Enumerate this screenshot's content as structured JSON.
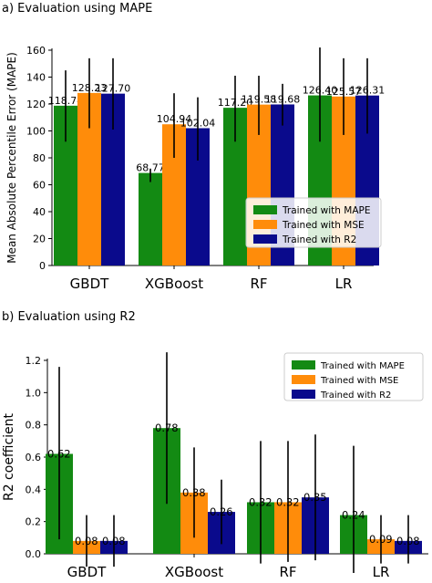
{
  "panels": {
    "a_title": "a) Evaluation using MAPE",
    "b_title": "b) Evaluation using R2"
  },
  "colors": {
    "Trained with MAPE": "#138a13",
    "Trained with MSE": "#ff8c0a",
    "Trained with R2": "#0a0a8c"
  },
  "chart_data": [
    {
      "type": "bar",
      "title": "a) Evaluation using MAPE",
      "xlabel": "",
      "ylabel": "Mean Absolute Percentile Error (MAPE)",
      "ylim": [
        0,
        160
      ],
      "yticks": [
        "0",
        "20",
        "40",
        "60",
        "80",
        "100",
        "120",
        "140",
        "160"
      ],
      "categories": [
        "GBDT",
        "XGBoost",
        "RF",
        "LR"
      ],
      "series": [
        {
          "name": "Trained with MAPE",
          "values": [
            118.74,
            68.77,
            117.2,
            126.4
          ],
          "labels": [
            "118.74",
            "68.77",
            "117.20",
            "126.40"
          ],
          "err_low": [
            92,
            62,
            92,
            92
          ],
          "err_high": [
            145,
            72,
            141,
            162
          ]
        },
        {
          "name": "Trained with MSE",
          "values": [
            128.23,
            104.94,
            119.58,
            125.57
          ],
          "labels": [
            "128.23",
            "104.94",
            "119.58",
            "125.57"
          ],
          "err_low": [
            102,
            80,
            97,
            97
          ],
          "err_high": [
            154,
            128,
            141,
            154
          ]
        },
        {
          "name": "Trained with R2",
          "values": [
            127.7,
            102.04,
            119.68,
            126.31
          ],
          "labels": [
            "127.70",
            "102.04",
            "119.68",
            "126.31"
          ],
          "err_low": [
            101,
            78,
            104,
            98
          ],
          "err_high": [
            154,
            125,
            135,
            154
          ]
        }
      ],
      "legend": "lower-right",
      "grid": false
    },
    {
      "type": "bar",
      "title": "b) Evaluation using R2",
      "xlabel": "",
      "ylabel": "R2 coefficient",
      "ylim": [
        0,
        1.2
      ],
      "yticks": [
        "0.0",
        "0.2",
        "0.4",
        "0.6",
        "0.8",
        "1.0",
        "1.2"
      ],
      "categories": [
        "GBDT",
        "XGBoost",
        "RF",
        "LR"
      ],
      "series": [
        {
          "name": "Trained with MAPE",
          "values": [
            0.62,
            0.78,
            0.32,
            0.24
          ],
          "labels": [
            "0.62",
            "0.78",
            "0.32",
            "0.24"
          ],
          "err_low": [
            0.09,
            0.31,
            -0.06,
            -0.19
          ],
          "err_high": [
            1.16,
            1.25,
            0.7,
            0.67
          ]
        },
        {
          "name": "Trained with MSE",
          "values": [
            0.08,
            0.38,
            0.32,
            0.09
          ],
          "labels": [
            "0.08",
            "0.38",
            "0.32",
            "0.09"
          ],
          "err_low": [
            -0.08,
            0.1,
            -0.05,
            -0.06
          ],
          "err_high": [
            0.24,
            0.66,
            0.7,
            0.24
          ]
        },
        {
          "name": "Trained with R2",
          "values": [
            0.08,
            0.26,
            0.35,
            0.08
          ],
          "labels": [
            "0.08",
            "0.26",
            "0.35",
            "0.08"
          ],
          "err_low": [
            -0.08,
            0.06,
            -0.04,
            -0.06
          ],
          "err_high": [
            0.24,
            0.46,
            0.74,
            0.24
          ]
        }
      ],
      "legend": "top-right",
      "grid": false
    }
  ]
}
